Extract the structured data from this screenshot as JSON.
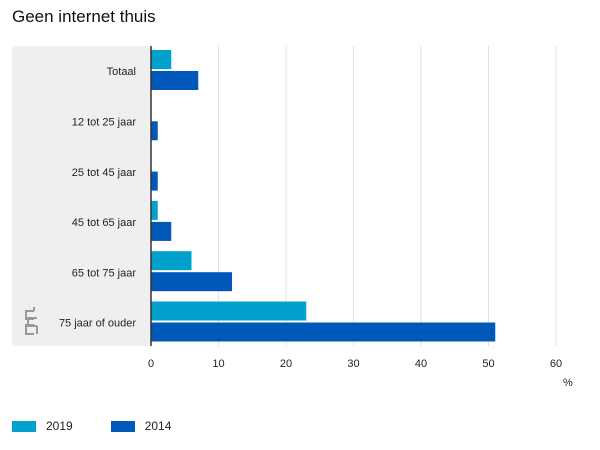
{
  "chart_data": {
    "type": "bar",
    "orientation": "horizontal",
    "title": "Geen internet thuis",
    "categories": [
      "Totaal",
      "12 tot 25 jaar",
      "25 tot 45 jaar",
      "45 tot 65 jaar",
      "65 tot 75 jaar",
      "75 jaar of ouder"
    ],
    "series": [
      {
        "name": "2019",
        "color": "#00a1cd",
        "values": [
          3,
          0,
          0,
          1,
          6,
          23
        ]
      },
      {
        "name": "2014",
        "color": "#0058b8",
        "values": [
          7,
          1,
          1,
          3,
          12,
          51
        ]
      }
    ],
    "xlim": [
      0,
      60
    ],
    "xticks": [
      0,
      10,
      20,
      30,
      40,
      50,
      60
    ],
    "xlabel": "%",
    "grid": true,
    "legend_position": "bottom-left",
    "logo": "CBS"
  }
}
